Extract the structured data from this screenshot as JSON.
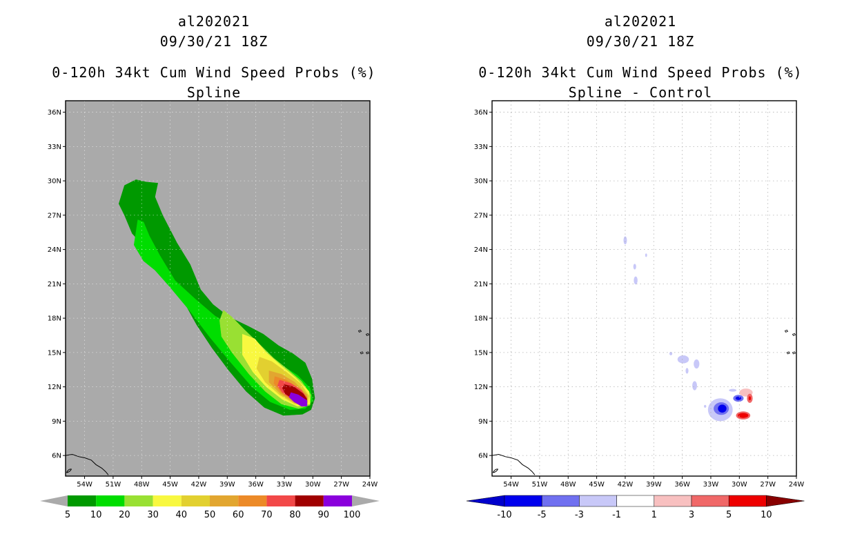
{
  "chart_data": [
    {
      "type": "heatmap",
      "title": "al202021",
      "subtitle_date": "09/30/21 18Z",
      "subtitle_field": "0-120h 34kt Cum Wind Speed Probs (%)",
      "subtitle_method": "Spline",
      "lon_ticks": [
        "54W",
        "51W",
        "48W",
        "45W",
        "42W",
        "39W",
        "36W",
        "33W",
        "30W",
        "27W",
        "24W"
      ],
      "lat_ticks": [
        "36N",
        "33N",
        "30N",
        "27N",
        "24N",
        "21N",
        "18N",
        "15N",
        "12N",
        "9N",
        "6N"
      ],
      "lon_values": [
        -54,
        -51,
        -48,
        -45,
        -42,
        -39,
        -36,
        -33,
        -30,
        -27,
        -24
      ],
      "lat_values": [
        36,
        33,
        30,
        27,
        24,
        21,
        18,
        15,
        12,
        9,
        6
      ],
      "xlim": [
        -56,
        -24
      ],
      "ylim": [
        4.2,
        37
      ],
      "background": "#aaaaaa",
      "colorbar": {
        "labels": [
          "5",
          "10",
          "20",
          "30",
          "40",
          "50",
          "60",
          "70",
          "80",
          "90",
          "100"
        ],
        "colors": [
          "#009900",
          "#00dd00",
          "#99e033",
          "#f8f840",
          "#e2d030",
          "#e2a630",
          "#ec8a28",
          "#f24848",
          "#a00000",
          "#8a00dc"
        ]
      },
      "levels": [
        {
          "level": 5,
          "color": "#009900",
          "points": [
            [
              -49.8,
              29.6
            ],
            [
              -48.6,
              30.1
            ],
            [
              -47.5,
              29.9
            ],
            [
              -46.3,
              29.8
            ],
            [
              -46.6,
              28.6
            ],
            [
              -45.8,
              27.0
            ],
            [
              -44.3,
              24.6
            ],
            [
              -42.9,
              22.7
            ],
            [
              -41.8,
              20.5
            ],
            [
              -40.5,
              19.2
            ],
            [
              -38.8,
              18.1
            ],
            [
              -36.8,
              17.3
            ],
            [
              -35.2,
              16.6
            ],
            [
              -33.6,
              15.6
            ],
            [
              -32.1,
              14.9
            ],
            [
              -30.8,
              14.1
            ],
            [
              -30.1,
              12.7
            ],
            [
              -29.8,
              11.0
            ],
            [
              -30.2,
              10.0
            ],
            [
              -31.1,
              9.6
            ],
            [
              -33.1,
              9.5
            ],
            [
              -35.1,
              10.2
            ],
            [
              -37.0,
              11.6
            ],
            [
              -38.9,
              13.5
            ],
            [
              -40.6,
              15.4
            ],
            [
              -42.2,
              17.4
            ],
            [
              -43.6,
              19.5
            ],
            [
              -45.1,
              21.6
            ],
            [
              -46.9,
              23.5
            ],
            [
              -49.0,
              25.4
            ],
            [
              -49.8,
              27.0
            ],
            [
              -50.4,
              28.0
            ]
          ]
        },
        {
          "level": 10,
          "color": "#00dd00",
          "points": [
            [
              -48.4,
              26.6
            ],
            [
              -47.8,
              26.4
            ],
            [
              -47.2,
              25.2
            ],
            [
              -46.1,
              23.5
            ],
            [
              -44.5,
              21.3
            ],
            [
              -42.4,
              19.7
            ],
            [
              -40.3,
              18.2
            ],
            [
              -38.3,
              17.2
            ],
            [
              -36.7,
              16.2
            ],
            [
              -35.0,
              15.0
            ],
            [
              -33.1,
              13.8
            ],
            [
              -31.6,
              13.0
            ],
            [
              -30.3,
              11.9
            ],
            [
              -30.0,
              10.8
            ],
            [
              -30.8,
              10.1
            ],
            [
              -32.4,
              10.0
            ],
            [
              -34.5,
              10.7
            ],
            [
              -36.4,
              12.0
            ],
            [
              -38.6,
              14.1
            ],
            [
              -40.8,
              16.3
            ],
            [
              -43.0,
              18.7
            ],
            [
              -45.1,
              20.8
            ],
            [
              -46.6,
              22.2
            ],
            [
              -47.8,
              23.0
            ],
            [
              -48.8,
              24.4
            ]
          ]
        },
        {
          "level": 20,
          "color": "#99e033",
          "points": [
            [
              -39.4,
              18.7
            ],
            [
              -38.5,
              18.1
            ],
            [
              -37.2,
              17.0
            ],
            [
              -35.7,
              15.8
            ],
            [
              -34.1,
              14.5
            ],
            [
              -32.6,
              13.5
            ],
            [
              -31.2,
              12.5
            ],
            [
              -30.2,
              11.3
            ],
            [
              -30.3,
              10.4
            ],
            [
              -31.5,
              10.1
            ],
            [
              -33.3,
              10.5
            ],
            [
              -35.0,
              11.6
            ],
            [
              -36.7,
              13.1
            ],
            [
              -38.5,
              15.0
            ],
            [
              -39.6,
              16.4
            ],
            [
              -39.8,
              17.8
            ]
          ]
        },
        {
          "level": 30,
          "color": "#f8f840",
          "points": [
            [
              -37.4,
              16.6
            ],
            [
              -36.1,
              16.2
            ],
            [
              -34.9,
              15.0
            ],
            [
              -33.4,
              13.9
            ],
            [
              -31.8,
              12.8
            ],
            [
              -30.4,
              11.6
            ],
            [
              -30.3,
              10.5
            ],
            [
              -31.6,
              10.3
            ],
            [
              -33.2,
              10.9
            ],
            [
              -34.9,
              12.0
            ],
            [
              -36.3,
              13.3
            ],
            [
              -37.4,
              14.8
            ]
          ]
        },
        {
          "level": 40,
          "color": "#e2d030",
          "points": [
            [
              -35.6,
              14.6
            ],
            [
              -34.3,
              14.2
            ],
            [
              -32.8,
              13.3
            ],
            [
              -31.3,
              12.3
            ],
            [
              -30.4,
              11.2
            ],
            [
              -30.6,
              10.5
            ],
            [
              -31.9,
              10.5
            ],
            [
              -33.5,
              11.3
            ],
            [
              -35.0,
              12.4
            ],
            [
              -35.9,
              13.6
            ]
          ]
        },
        {
          "level": 50,
          "color": "#e2a630",
          "points": [
            [
              -34.6,
              13.4
            ],
            [
              -33.3,
              13.1
            ],
            [
              -31.9,
              12.4
            ],
            [
              -30.6,
              11.3
            ],
            [
              -30.6,
              10.6
            ],
            [
              -31.9,
              10.6
            ],
            [
              -33.4,
              11.4
            ],
            [
              -34.6,
              12.4
            ]
          ]
        },
        {
          "level": 60,
          "color": "#ec8a28",
          "points": [
            [
              -34.0,
              12.9
            ],
            [
              -32.8,
              12.6
            ],
            [
              -31.5,
              11.9
            ],
            [
              -30.6,
              11.1
            ],
            [
              -30.7,
              10.6
            ],
            [
              -31.9,
              10.7
            ],
            [
              -33.3,
              11.5
            ],
            [
              -34.1,
              12.3
            ]
          ]
        },
        {
          "level": 70,
          "color": "#f24848",
          "points": [
            [
              -33.5,
              12.6
            ],
            [
              -32.3,
              12.3
            ],
            [
              -31.2,
              11.7
            ],
            [
              -30.6,
              11.0
            ],
            [
              -30.9,
              10.6
            ],
            [
              -32.0,
              10.8
            ],
            [
              -33.2,
              11.5
            ],
            [
              -33.7,
              12.1
            ]
          ]
        },
        {
          "level": 80,
          "color": "#a00000",
          "points": [
            [
              -33.0,
              12.2
            ],
            [
              -32.0,
              12.0
            ],
            [
              -31.0,
              11.4
            ],
            [
              -30.6,
              10.9
            ],
            [
              -31.0,
              10.6
            ],
            [
              -32.0,
              10.9
            ],
            [
              -32.9,
              11.4
            ],
            [
              -33.2,
              11.9
            ]
          ]
        },
        {
          "level": 90,
          "color": "#8a00dc",
          "points": [
            [
              -32.3,
              11.5
            ],
            [
              -31.5,
              11.3
            ],
            [
              -30.6,
              10.8
            ],
            [
              -30.6,
              10.3
            ],
            [
              -31.2,
              10.3
            ],
            [
              -32.0,
              10.7
            ],
            [
              -32.5,
              11.1
            ]
          ]
        }
      ]
    },
    {
      "type": "heatmap",
      "title": "al202021",
      "subtitle_date": "09/30/21 18Z",
      "subtitle_field": "0-120h 34kt Cum Wind Speed Probs (%)",
      "subtitle_method": "Spline - Control",
      "lon_ticks": [
        "54W",
        "51W",
        "48W",
        "45W",
        "42W",
        "39W",
        "36W",
        "33W",
        "30W",
        "27W",
        "24W"
      ],
      "lat_ticks": [
        "36N",
        "33N",
        "30N",
        "27N",
        "24N",
        "21N",
        "18N",
        "15N",
        "12N",
        "9N",
        "6N"
      ],
      "lon_values": [
        -54,
        -51,
        -48,
        -45,
        -42,
        -39,
        -36,
        -33,
        -30,
        -27,
        -24
      ],
      "lat_values": [
        36,
        33,
        30,
        27,
        24,
        21,
        18,
        15,
        12,
        9,
        6
      ],
      "xlim": [
        -56,
        -24
      ],
      "ylim": [
        4.2,
        37
      ],
      "background": "#ffffff",
      "grid": true,
      "colorbar": {
        "labels": [
          "-10",
          "-5",
          "-3",
          "-1",
          "1",
          "3",
          "5",
          "10"
        ],
        "colors": [
          "#0000cc",
          "#0000ee",
          "#7070f0",
          "#c8c8f8",
          "#ffffff",
          "#f8c0c0",
          "#f06868",
          "#ee0000",
          "#880000"
        ]
      },
      "blobs": [
        {
          "lon": -42.0,
          "lat": 24.8,
          "rx": 0.18,
          "ry": 0.35,
          "color": "#c8c8f8"
        },
        {
          "lon": -41.0,
          "lat": 22.5,
          "rx": 0.15,
          "ry": 0.25,
          "color": "#c8c8f8"
        },
        {
          "lon": -40.9,
          "lat": 21.3,
          "rx": 0.2,
          "ry": 0.35,
          "color": "#c8c8f8"
        },
        {
          "lon": -39.8,
          "lat": 23.5,
          "rx": 0.1,
          "ry": 0.15,
          "color": "#c8c8f8"
        },
        {
          "lon": -37.2,
          "lat": 14.9,
          "rx": 0.15,
          "ry": 0.15,
          "color": "#c8c8f8"
        },
        {
          "lon": -35.9,
          "lat": 14.4,
          "rx": 0.6,
          "ry": 0.35,
          "color": "#c8c8f8"
        },
        {
          "lon": -34.5,
          "lat": 14.0,
          "rx": 0.3,
          "ry": 0.4,
          "color": "#c8c8f8"
        },
        {
          "lon": -35.5,
          "lat": 13.4,
          "rx": 0.15,
          "ry": 0.25,
          "color": "#c8c8f8"
        },
        {
          "lon": -34.7,
          "lat": 12.1,
          "rx": 0.25,
          "ry": 0.4,
          "color": "#c8c8f8"
        },
        {
          "lon": -33.6,
          "lat": 10.3,
          "rx": 0.12,
          "ry": 0.12,
          "color": "#c8c8f8"
        },
        {
          "lon": -32.0,
          "lat": 10.0,
          "rx": 1.3,
          "ry": 1.0,
          "color": "#c8c8f8"
        },
        {
          "lon": -31.9,
          "lat": 10.1,
          "rx": 0.8,
          "ry": 0.55,
          "color": "#7070f0"
        },
        {
          "lon": -31.8,
          "lat": 10.1,
          "rx": 0.45,
          "ry": 0.35,
          "color": "#0000ee"
        },
        {
          "lon": -30.7,
          "lat": 11.7,
          "rx": 0.4,
          "ry": 0.12,
          "color": "#c8c8f8"
        },
        {
          "lon": -30.1,
          "lat": 11.0,
          "rx": 0.55,
          "ry": 0.3,
          "color": "#7070f0"
        },
        {
          "lon": -30.1,
          "lat": 11.0,
          "rx": 0.3,
          "ry": 0.15,
          "color": "#0000ee"
        },
        {
          "lon": -29.3,
          "lat": 11.5,
          "rx": 0.7,
          "ry": 0.35,
          "color": "#f8c0c0"
        },
        {
          "lon": -28.9,
          "lat": 11.0,
          "rx": 0.3,
          "ry": 0.4,
          "color": "#f06868"
        },
        {
          "lon": -28.9,
          "lat": 11.0,
          "rx": 0.12,
          "ry": 0.18,
          "color": "#ee0000"
        },
        {
          "lon": -29.6,
          "lat": 9.5,
          "rx": 0.75,
          "ry": 0.35,
          "color": "#f06868"
        },
        {
          "lon": -29.6,
          "lat": 9.5,
          "rx": 0.55,
          "ry": 0.22,
          "color": "#ee0000"
        }
      ]
    }
  ]
}
